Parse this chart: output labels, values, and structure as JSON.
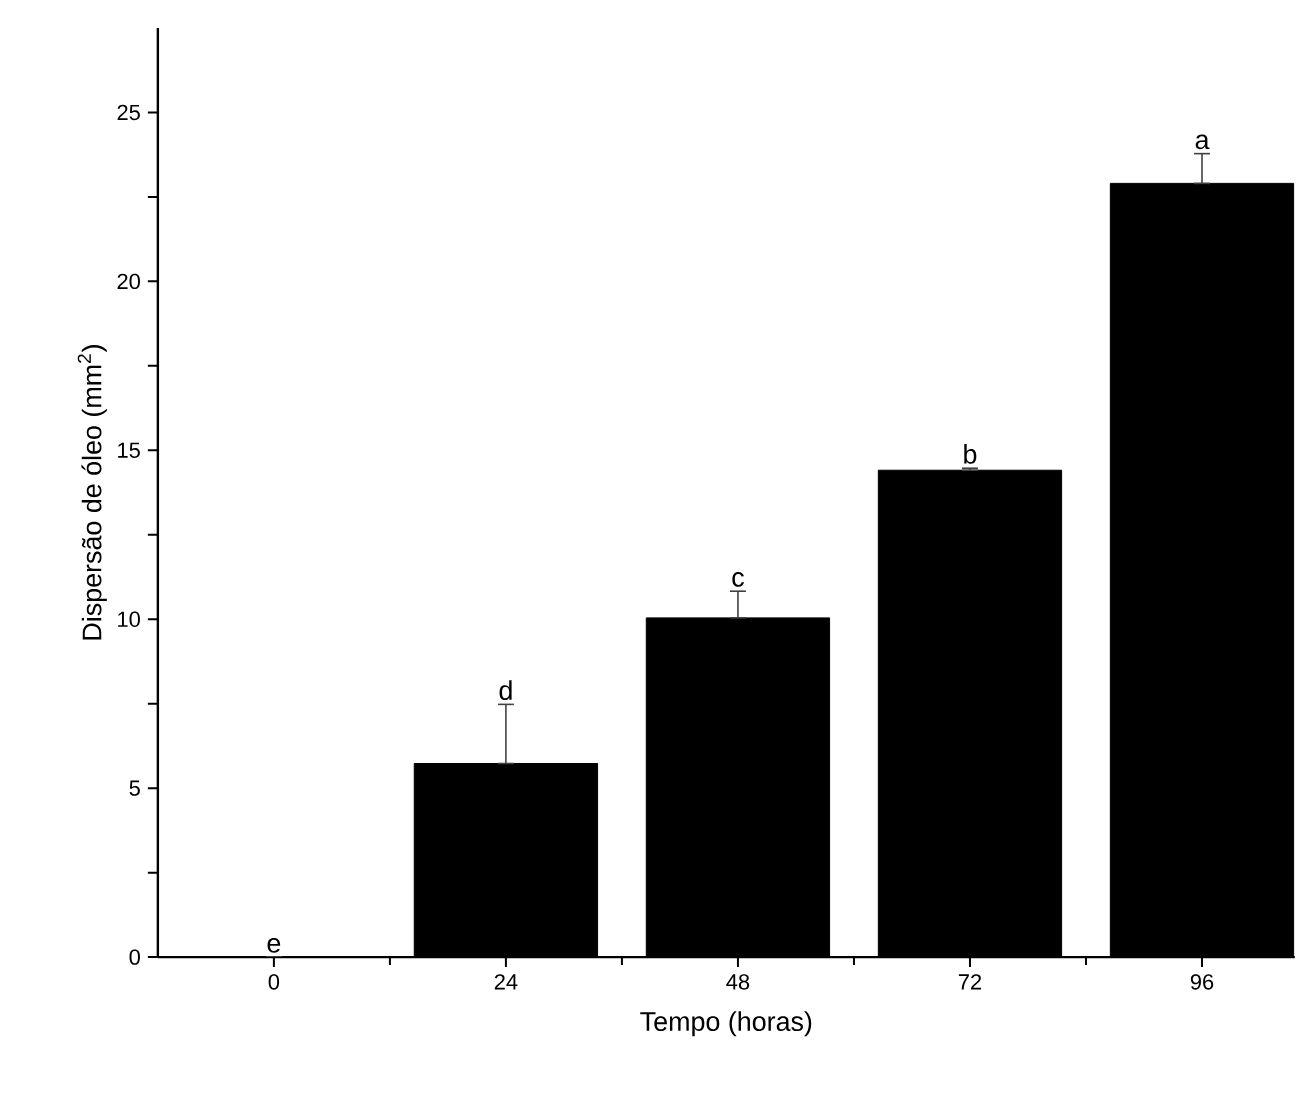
{
  "chart_data": {
    "type": "bar",
    "xlabel": "Tempo (horas)",
    "ylabel": "Dispersão de óleo (mm$^{2}$)",
    "categories": [
      "0",
      "24",
      "48",
      "72",
      "96"
    ],
    "values": [
      0,
      5.73,
      10.04,
      14.41,
      22.9
    ],
    "errors": [
      null,
      [
        5.73,
        7.48
      ],
      [
        10.04,
        10.83
      ],
      [
        14.41,
        14.47
      ],
      [
        22.9,
        23.78
      ]
    ],
    "color": "#000000",
    "ylim": [
      0,
      27.5
    ],
    "yticks": [
      0,
      {
        "value": 2.5,
        "label": null
      },
      5,
      {
        "value": 7.5,
        "label": null
      },
      10,
      {
        "value": 12.5,
        "label": null
      },
      15,
      {
        "value": 17.5,
        "label": null
      },
      20,
      {
        "value": 22.5,
        "label": null
      },
      25
    ],
    "annotations": [
      {
        "text": "e",
        "x": "0",
        "y": 0
      },
      {
        "text": "d",
        "x": "24",
        "y": 7.48
      },
      {
        "text": "c",
        "x": "48",
        "y": 10.83
      },
      {
        "text": "b",
        "x": "72",
        "y": 14.47
      },
      {
        "text": "a",
        "x": "96",
        "y": 23.78
      }
    ],
    "grid": false
  }
}
